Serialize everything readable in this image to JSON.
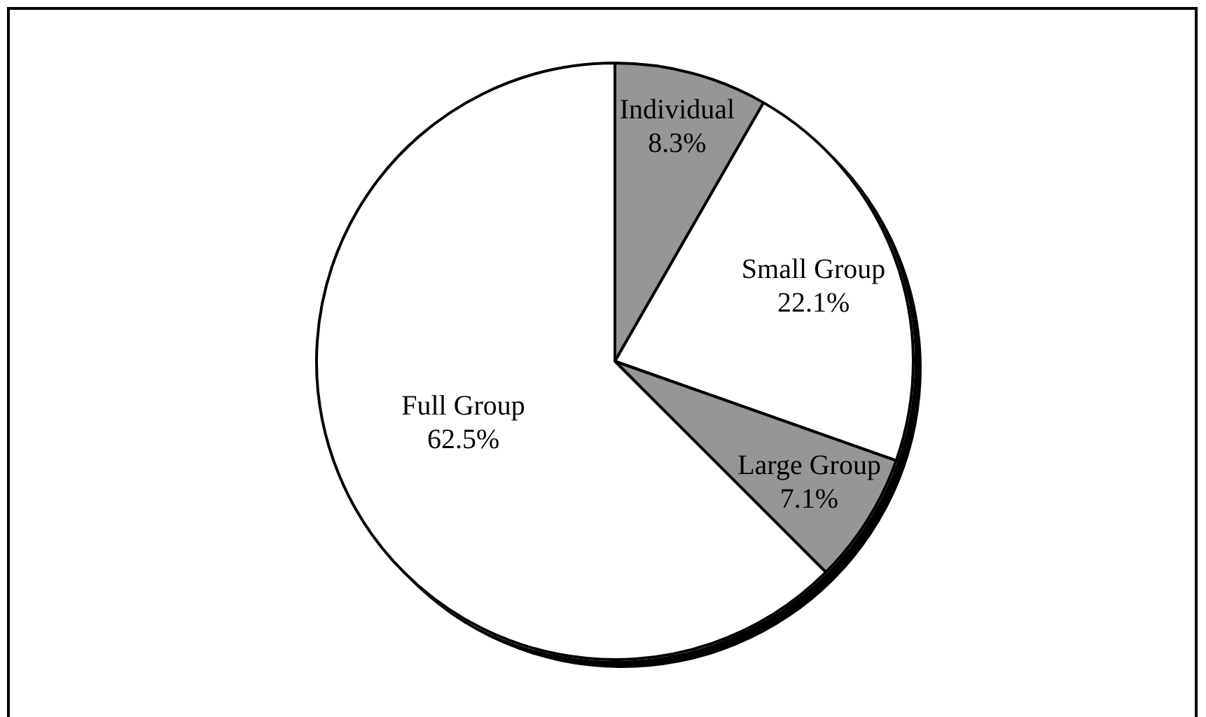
{
  "chart_data": {
    "type": "pie",
    "categories": [
      "Individual",
      "Small Group",
      "Large Group",
      "Full Group"
    ],
    "values": [
      8.3,
      22.1,
      7.1,
      62.5
    ],
    "colors": [
      "#969696",
      "#ffffff",
      "#969696",
      "#ffffff"
    ],
    "value_labels": [
      "8.3%",
      "22.1%",
      "7.1%",
      "62.5%"
    ]
  }
}
